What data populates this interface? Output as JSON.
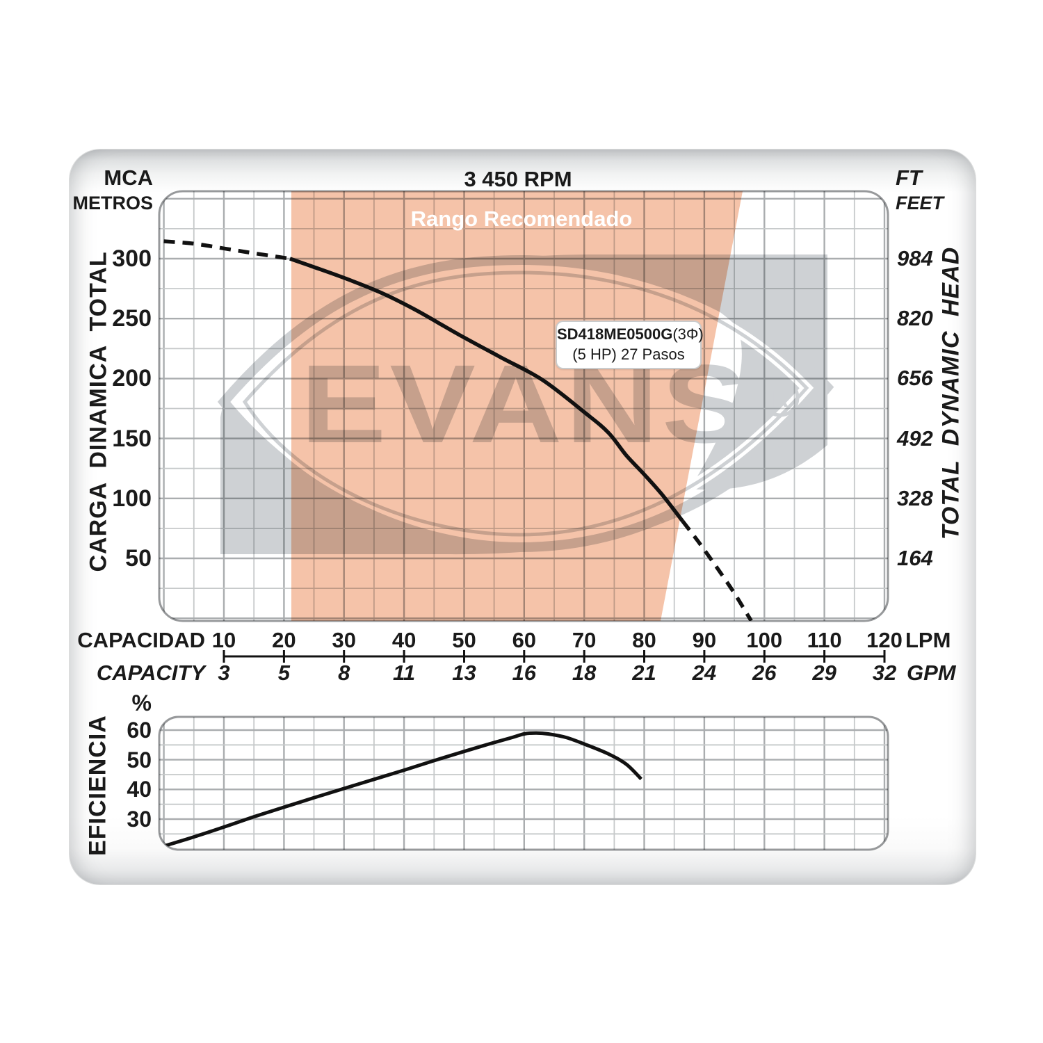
{
  "card": {
    "title": "3 450 RPM"
  },
  "recommended_range": {
    "label": "Rango Recomendado",
    "fill_color": "#e87b40"
  },
  "pump_label": {
    "model": "SD418ME0500G",
    "phase": "(3Φ)",
    "detail": "(5 HP) 27 Pasos"
  },
  "watermark": {
    "brand": "EVANS",
    "registered": "R",
    "color": "#ced1d4"
  },
  "left_axis": {
    "unit": "MCA",
    "unit2": "METROS",
    "title": "CARGA  DINAMICA  TOTAL",
    "ticks": [
      "300",
      "250",
      "200",
      "150",
      "100",
      "50"
    ]
  },
  "right_axis": {
    "unit": "FT",
    "unit2": "FEET",
    "title": "TOTAL  DYNAMIC  HEAD",
    "ticks": [
      "984",
      "820",
      "656",
      "492",
      "328",
      "164"
    ]
  },
  "x_axis": {
    "label": "CAPACIDAD",
    "label2": "CAPACITY",
    "unit": "LPM",
    "unit2": "GPM",
    "lpm_ticks": [
      "10",
      "20",
      "30",
      "40",
      "50",
      "60",
      "70",
      "80",
      "90",
      "100",
      "110",
      "120"
    ],
    "gpm_ticks": [
      "3",
      "5",
      "8",
      "11",
      "13",
      "16",
      "18",
      "21",
      "24",
      "26",
      "29",
      "32"
    ]
  },
  "efficiency_axis": {
    "title": "EFICIENCIA",
    "unit": "%",
    "ticks": [
      "60",
      "50",
      "40",
      "30"
    ]
  },
  "chart_data": [
    {
      "type": "line",
      "name": "pump_head_curve",
      "title": "3 450 RPM",
      "xlabel": "CAPACIDAD / CAPACITY",
      "ylabel_left": "CARGA DINAMICA TOTAL (MCA METROS)",
      "ylabel_right": "TOTAL DYNAMIC HEAD (FT FEET)",
      "x_unit": "LPM",
      "x_ticks_lpm": [
        10,
        20,
        30,
        40,
        50,
        60,
        70,
        80,
        90,
        100,
        110,
        120
      ],
      "x_ticks_gpm": [
        3,
        5,
        8,
        11,
        13,
        16,
        18,
        21,
        24,
        26,
        29,
        32
      ],
      "y_ticks_mca": [
        300,
        250,
        200,
        150,
        100,
        50
      ],
      "y_ticks_ft": [
        984,
        820,
        656,
        492,
        328,
        164
      ],
      "grid": true,
      "series": [
        {
          "name": "SD418ME0500G (5 HP) 27 Pasos",
          "points_lpm_mca": [
            [
              0,
              314.5
            ],
            [
              5,
              312.5
            ],
            [
              10,
              308.5
            ],
            [
              15,
              304.5
            ],
            [
              21,
              300
            ],
            [
              25,
              293
            ],
            [
              30,
              284
            ],
            [
              36,
              272
            ],
            [
              42,
              257
            ],
            [
              49,
              237
            ],
            [
              56,
              218
            ],
            [
              63,
              199
            ],
            [
              70,
              172
            ],
            [
              74,
              155
            ],
            [
              77,
              136
            ],
            [
              80,
              120
            ],
            [
              83,
              103
            ],
            [
              86.4,
              81
            ],
            [
              89,
              64
            ],
            [
              92,
              43
            ],
            [
              95,
              21
            ],
            [
              97.8,
              -2
            ]
          ],
          "solid_range_lpm": [
            21,
            86.4
          ],
          "note": "dashed outside solid range"
        }
      ],
      "recommended_range_band": {
        "label": "Rango Recomendado",
        "left_edge_lpm": 21.3,
        "right_edge_top_lpm": 96.4,
        "right_edge_bottom_lpm": 82.7
      }
    },
    {
      "type": "line",
      "name": "efficiency_curve",
      "ylabel": "EFICIENCIA %",
      "y_ticks_pct": [
        60,
        50,
        40,
        30
      ],
      "grid": true,
      "points_lpm_pct": [
        [
          0,
          20.9
        ],
        [
          5,
          24
        ],
        [
          11,
          28
        ],
        [
          15,
          30.8
        ],
        [
          20,
          34
        ],
        [
          25,
          37.2
        ],
        [
          30,
          40.3
        ],
        [
          35,
          43.4
        ],
        [
          40,
          46.5
        ],
        [
          45,
          49.7
        ],
        [
          50,
          52.8
        ],
        [
          54,
          55.2
        ],
        [
          58,
          57.5
        ],
        [
          60,
          58.7
        ],
        [
          62,
          59
        ],
        [
          64,
          58.7
        ],
        [
          67,
          57.5
        ],
        [
          70,
          55.3
        ],
        [
          74,
          52
        ],
        [
          77,
          48.5
        ],
        [
          79.5,
          43.5
        ]
      ]
    }
  ]
}
